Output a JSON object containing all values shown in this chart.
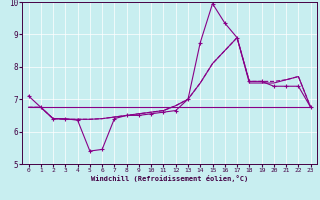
{
  "xlabel": "Windchill (Refroidissement éolien,°C)",
  "background_color": "#c8eef0",
  "line_color": "#880088",
  "xlim": [
    -0.5,
    23.5
  ],
  "ylim": [
    5,
    10
  ],
  "yticks": [
    5,
    6,
    7,
    8,
    9,
    10
  ],
  "xticks": [
    0,
    1,
    2,
    3,
    4,
    5,
    6,
    7,
    8,
    9,
    10,
    11,
    12,
    13,
    14,
    15,
    16,
    17,
    18,
    19,
    20,
    21,
    22,
    23
  ],
  "line_a_y": [
    7.1,
    6.75,
    6.4,
    6.4,
    6.35,
    5.4,
    5.45,
    6.4,
    6.5,
    6.5,
    6.55,
    6.6,
    6.65,
    7.0,
    8.75,
    9.95,
    9.35,
    8.9,
    7.55,
    7.55,
    7.4,
    7.4,
    7.4,
    6.75
  ],
  "line_b_y": [
    6.75,
    6.75,
    6.75,
    6.75,
    6.75,
    6.75,
    6.75,
    6.75,
    6.75,
    6.75,
    6.75,
    6.75,
    6.75,
    6.75,
    6.75,
    6.75,
    6.75,
    6.75,
    6.75,
    6.75,
    6.75,
    6.75,
    6.75,
    6.75
  ],
  "line_c_y": [
    6.75,
    6.75,
    6.4,
    6.38,
    6.38,
    6.38,
    6.4,
    6.45,
    6.5,
    6.55,
    6.6,
    6.65,
    6.8,
    7.0,
    7.5,
    8.1,
    8.5,
    8.9,
    7.5,
    7.5,
    7.5,
    7.6,
    7.7,
    6.75
  ],
  "line_d_y": [
    6.75,
    6.75,
    6.4,
    6.38,
    6.38,
    6.38,
    6.4,
    6.45,
    6.5,
    6.55,
    6.6,
    6.65,
    6.8,
    7.0,
    7.5,
    8.1,
    8.5,
    8.9,
    7.55,
    7.55,
    7.55,
    7.6,
    7.7,
    6.75
  ]
}
